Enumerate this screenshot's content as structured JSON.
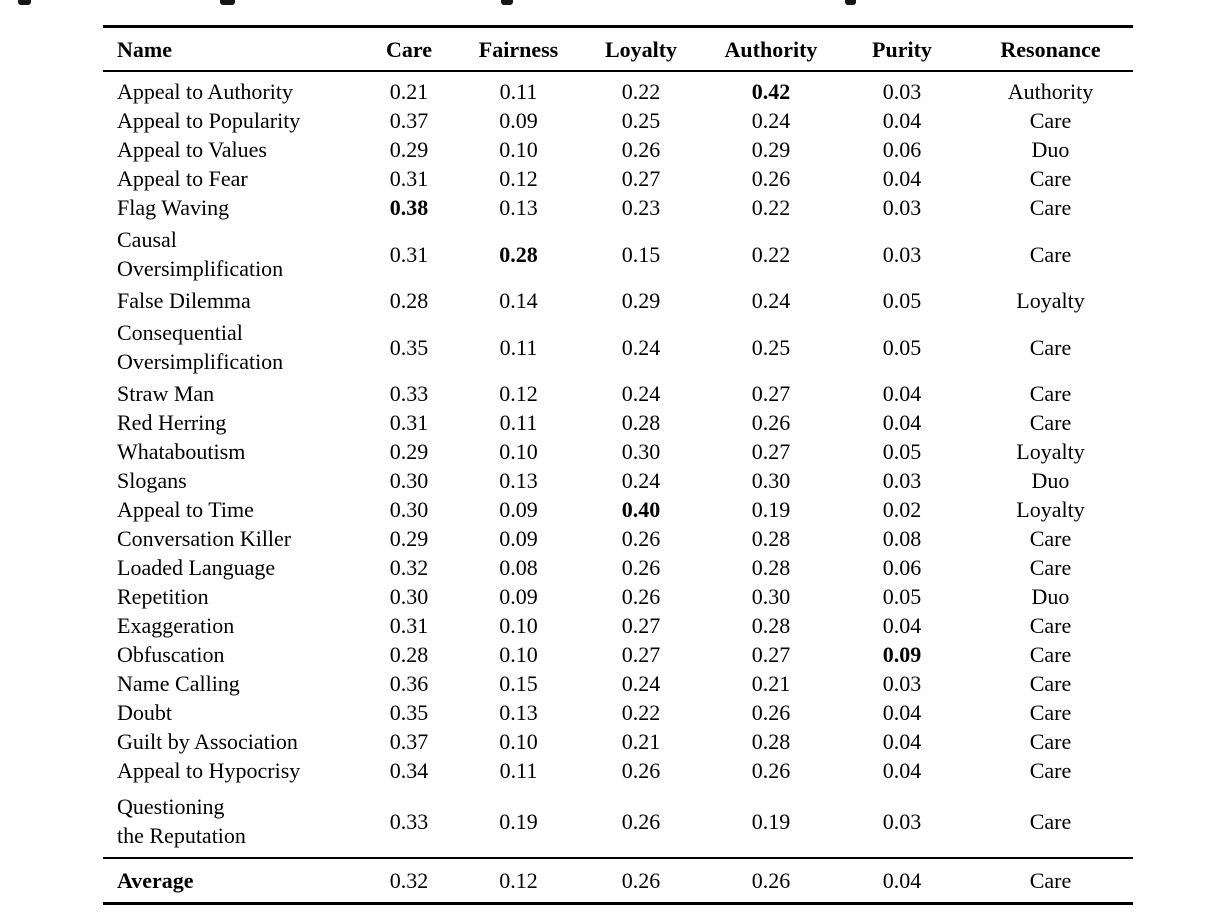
{
  "colors": {
    "text": "#000000",
    "background": "#ffffff",
    "rule": "#000000"
  },
  "table": {
    "columns": [
      "Name",
      "Care",
      "Fairness",
      "Loyalty",
      "Authority",
      "Purity",
      "Resonance"
    ],
    "rows": [
      {
        "name_lines": [
          "Appeal to Authority"
        ],
        "care": "0.21",
        "fairness": "0.11",
        "loyalty": "0.22",
        "authority": "0.42",
        "purity": "0.03",
        "resonance": "Authority",
        "bold": "authority"
      },
      {
        "name_lines": [
          "Appeal to Popularity"
        ],
        "care": "0.37",
        "fairness": "0.09",
        "loyalty": "0.25",
        "authority": "0.24",
        "purity": "0.04",
        "resonance": "Care",
        "bold": null
      },
      {
        "name_lines": [
          "Appeal to Values"
        ],
        "care": "0.29",
        "fairness": "0.10",
        "loyalty": "0.26",
        "authority": "0.29",
        "purity": "0.06",
        "resonance": "Duo",
        "bold": null
      },
      {
        "name_lines": [
          "Appeal to Fear"
        ],
        "care": "0.31",
        "fairness": "0.12",
        "loyalty": "0.27",
        "authority": "0.26",
        "purity": "0.04",
        "resonance": "Care",
        "bold": null
      },
      {
        "name_lines": [
          "Flag Waving"
        ],
        "care": "0.38",
        "fairness": "0.13",
        "loyalty": "0.23",
        "authority": "0.22",
        "purity": "0.03",
        "resonance": "Care",
        "bold": "care"
      },
      {
        "name_lines": [
          "Causal",
          "Oversimplification"
        ],
        "care": "0.31",
        "fairness": "0.28",
        "loyalty": "0.15",
        "authority": "0.22",
        "purity": "0.03",
        "resonance": "Care",
        "bold": "fairness"
      },
      {
        "name_lines": [
          "False Dilemma"
        ],
        "care": "0.28",
        "fairness": "0.14",
        "loyalty": "0.29",
        "authority": "0.24",
        "purity": "0.05",
        "resonance": "Loyalty",
        "bold": null
      },
      {
        "name_lines": [
          "Consequential",
          "Oversimplification"
        ],
        "care": "0.35",
        "fairness": "0.11",
        "loyalty": "0.24",
        "authority": "0.25",
        "purity": "0.05",
        "resonance": "Care",
        "bold": null
      },
      {
        "name_lines": [
          "Straw Man"
        ],
        "care": "0.33",
        "fairness": "0.12",
        "loyalty": "0.24",
        "authority": "0.27",
        "purity": "0.04",
        "resonance": "Care",
        "bold": null
      },
      {
        "name_lines": [
          "Red Herring"
        ],
        "care": "0.31",
        "fairness": "0.11",
        "loyalty": "0.28",
        "authority": "0.26",
        "purity": "0.04",
        "resonance": "Care",
        "bold": null
      },
      {
        "name_lines": [
          "Whataboutism"
        ],
        "care": "0.29",
        "fairness": "0.10",
        "loyalty": "0.30",
        "authority": "0.27",
        "purity": "0.05",
        "resonance": "Loyalty",
        "bold": null
      },
      {
        "name_lines": [
          "Slogans"
        ],
        "care": "0.30",
        "fairness": "0.13",
        "loyalty": "0.24",
        "authority": "0.30",
        "purity": "0.03",
        "resonance": "Duo",
        "bold": null
      },
      {
        "name_lines": [
          "Appeal to Time"
        ],
        "care": "0.30",
        "fairness": "0.09",
        "loyalty": "0.40",
        "authority": "0.19",
        "purity": "0.02",
        "resonance": "Loyalty",
        "bold": "loyalty"
      },
      {
        "name_lines": [
          "Conversation Killer"
        ],
        "care": "0.29",
        "fairness": "0.09",
        "loyalty": "0.26",
        "authority": "0.28",
        "purity": "0.08",
        "resonance": "Care",
        "bold": null
      },
      {
        "name_lines": [
          "Loaded Language"
        ],
        "care": "0.32",
        "fairness": "0.08",
        "loyalty": "0.26",
        "authority": "0.28",
        "purity": "0.06",
        "resonance": "Care",
        "bold": null
      },
      {
        "name_lines": [
          "Repetition"
        ],
        "care": "0.30",
        "fairness": "0.09",
        "loyalty": "0.26",
        "authority": "0.30",
        "purity": "0.05",
        "resonance": "Duo",
        "bold": null
      },
      {
        "name_lines": [
          "Exaggeration"
        ],
        "care": "0.31",
        "fairness": "0.10",
        "loyalty": "0.27",
        "authority": "0.28",
        "purity": "0.04",
        "resonance": "Care",
        "bold": null
      },
      {
        "name_lines": [
          "Obfuscation"
        ],
        "care": "0.28",
        "fairness": "0.10",
        "loyalty": "0.27",
        "authority": "0.27",
        "purity": "0.09",
        "resonance": "Care",
        "bold": "purity"
      },
      {
        "name_lines": [
          "Name Calling"
        ],
        "care": "0.36",
        "fairness": "0.15",
        "loyalty": "0.24",
        "authority": "0.21",
        "purity": "0.03",
        "resonance": "Care",
        "bold": null
      },
      {
        "name_lines": [
          "Doubt"
        ],
        "care": "0.35",
        "fairness": "0.13",
        "loyalty": "0.22",
        "authority": "0.26",
        "purity": "0.04",
        "resonance": "Care",
        "bold": null
      },
      {
        "name_lines": [
          "Guilt by Association"
        ],
        "care": "0.37",
        "fairness": "0.10",
        "loyalty": "0.21",
        "authority": "0.28",
        "purity": "0.04",
        "resonance": "Care",
        "bold": null
      },
      {
        "name_lines": [
          "Appeal to Hypocrisy"
        ],
        "care": "0.34",
        "fairness": "0.11",
        "loyalty": "0.26",
        "authority": "0.26",
        "purity": "0.04",
        "resonance": "Care",
        "bold": null
      },
      {
        "name_lines": [
          "Questioning",
          "the Reputation"
        ],
        "care": "0.33",
        "fairness": "0.19",
        "loyalty": "0.26",
        "authority": "0.19",
        "purity": "0.03",
        "resonance": "Care",
        "bold": null
      }
    ],
    "footer": {
      "name_lines": [
        "Average"
      ],
      "care": "0.32",
      "fairness": "0.12",
      "loyalty": "0.26",
      "authority": "0.26",
      "purity": "0.04",
      "resonance": "Care",
      "bold": null
    }
  }
}
